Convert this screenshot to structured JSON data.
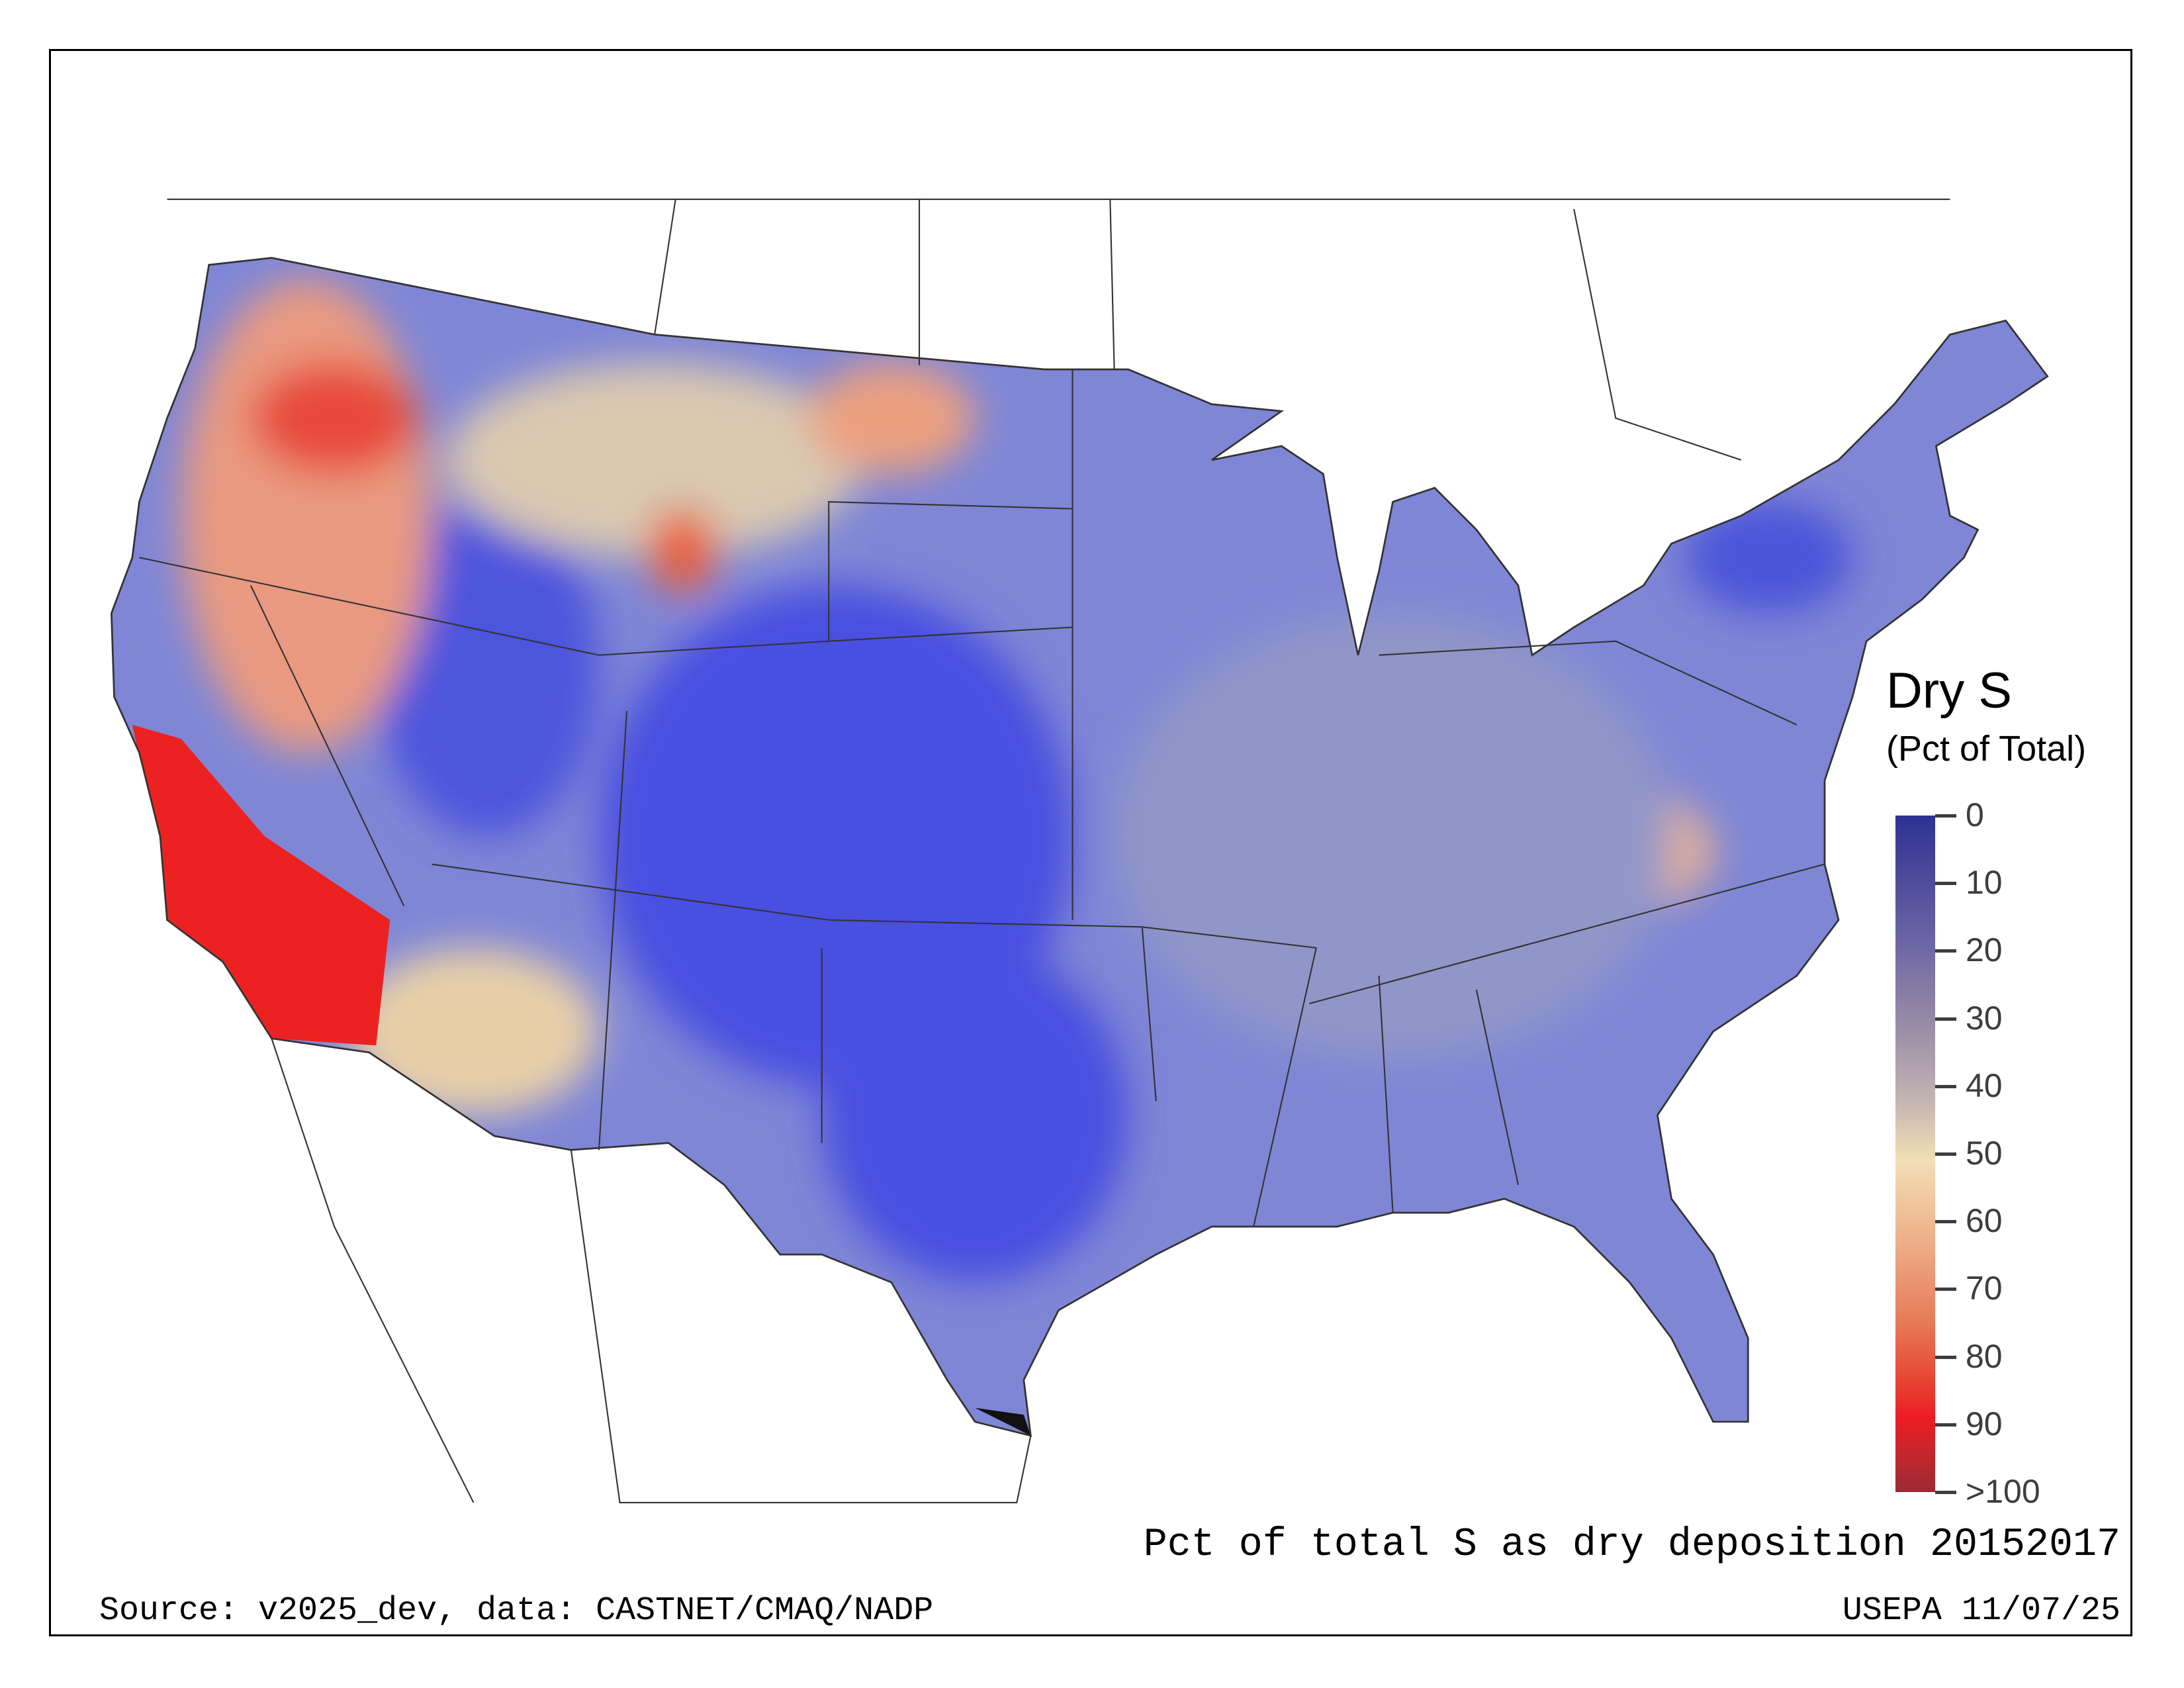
{
  "legend": {
    "title": "Dry S",
    "subtitle": "(Pct of Total)",
    "ticks": [
      "0",
      "10",
      "20",
      "30",
      "40",
      "50",
      "60",
      "70",
      "80",
      "90",
      ">100"
    ],
    "colors": {
      "low": "#2e3192",
      "mid": "#f3dfb5",
      "high": "#ed1c24",
      "max": "#9b2a33"
    }
  },
  "plot_title": "Pct of total S as dry deposition 20152017",
  "source": "Source: v2025_dev, data: CASTNET/CMAQ/NADP",
  "credit": "USEPA 11/07/25",
  "chart_data": {
    "type": "heatmap",
    "title": "Pct of total S as dry deposition 20152017",
    "variable": "Dry S (Pct of Total)",
    "colorbar_range": [
      0,
      100
    ],
    "colorbar_ticks": [
      0,
      10,
      20,
      30,
      40,
      50,
      60,
      70,
      80,
      90,
      100
    ],
    "regions": [
      {
        "name": "California Central Valley / Southern CA",
        "approx_value": 90
      },
      {
        "name": "Pacific Northwest / Oregon",
        "approx_value": 70
      },
      {
        "name": "Great Plains",
        "approx_value": 10
      },
      {
        "name": "Eastern US",
        "approx_value": 25
      },
      {
        "name": "Intermountain West",
        "approx_value": 45
      }
    ]
  }
}
